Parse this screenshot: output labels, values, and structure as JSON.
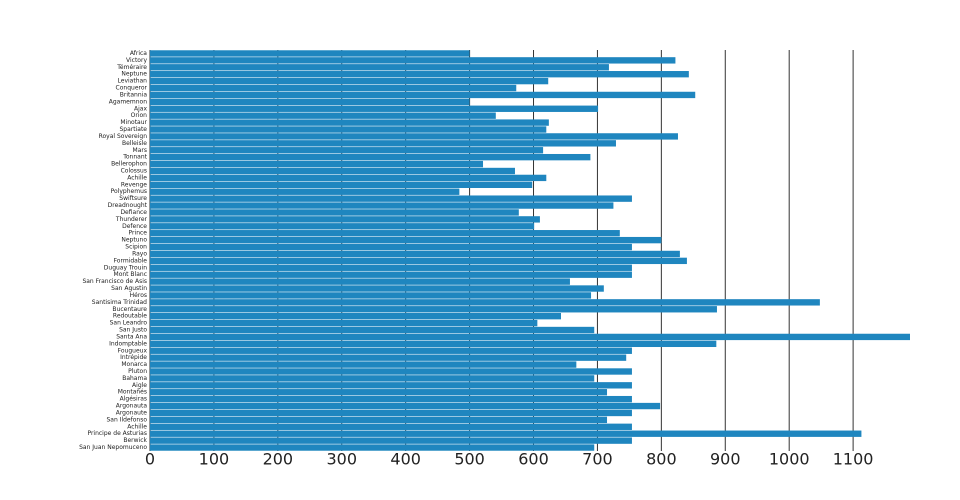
{
  "chart_data": {
    "type": "barh",
    "color": "#1f86bf",
    "grid": true,
    "categories": [
      "Africa",
      "Victory",
      "Téméraire",
      "Neptune",
      "Leviathan",
      "Conqueror",
      "Britannia",
      "Agamemnon",
      "Ajax",
      "Orion",
      "Minotaur",
      "Spartiate",
      "Royal Sovereign",
      "Belleisle",
      "Mars",
      "Tonnant",
      "Bellerophon",
      "Colossus",
      "Achille",
      "Revenge",
      "Polyphemus",
      "Swiftsure",
      "Dreadnought",
      "Defiance",
      "Thunderer",
      "Defence",
      "Prince",
      "Neptuno",
      "Scipion",
      "Rayo",
      "Formidable",
      "Duguay Trouin",
      "Mont Blanc",
      "San Francisco de Asis",
      "San Agustin",
      "Héros",
      "Santisima Trinidad",
      "Bucentaure",
      "Redoutable",
      "San Leandro",
      "San Justo",
      "Santa Ana",
      "Indomptable",
      "Fougueux",
      "Intrépide",
      "Monarca",
      "Pluton",
      "Bahama",
      "Aigle",
      "Montañés",
      "Algésiras",
      "Argonauta",
      "Argonaute",
      "San Ildefonso",
      "Achille",
      "Principe de Asturias",
      "Berwick",
      "San Juan Nepomuceno"
    ],
    "values": [
      500,
      822,
      718,
      843,
      623,
      573,
      853,
      500,
      701,
      541,
      624,
      620,
      826,
      729,
      615,
      689,
      521,
      571,
      620,
      598,
      484,
      754,
      725,
      577,
      610,
      601,
      735,
      800,
      754,
      829,
      840,
      754,
      754,
      657,
      710,
      690,
      1048,
      887,
      643,
      606,
      695,
      1189,
      886,
      754,
      745,
      667,
      754,
      695,
      754,
      715,
      754,
      798,
      754,
      715,
      754,
      1113,
      754,
      695
    ],
    "xlim": [
      0,
      1189
    ],
    "xticks": [
      0,
      100,
      200,
      300,
      400,
      500,
      600,
      700,
      800,
      900,
      1000,
      1100
    ]
  }
}
